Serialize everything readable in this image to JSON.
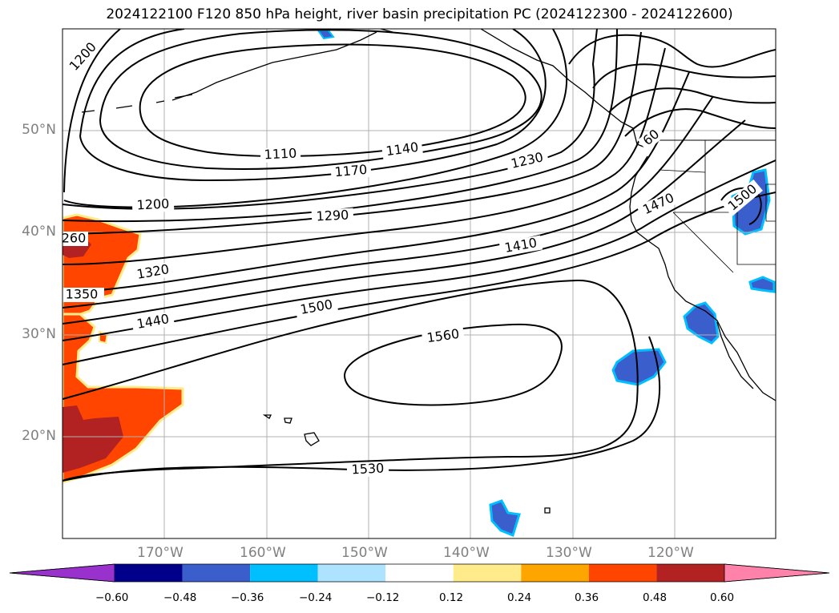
{
  "title": "2024122100 F120 850 hPa height, river basin precipitation PC (2024122300 - 2024122600)",
  "axes": {
    "lat_labels": [
      "20°N",
      "30°N",
      "40°N",
      "50°N"
    ],
    "lon_labels": [
      "170°W",
      "160°W",
      "150°W",
      "140°W",
      "130°W",
      "120°W"
    ]
  },
  "contour_labels": [
    "1200",
    "1110",
    "1140",
    "1170",
    "1230",
    "1200",
    "1290",
    "1410",
    "1470",
    "1500",
    "260",
    "1320",
    "1350",
    "1440",
    "1500",
    "1560",
    "1530",
    "60"
  ],
  "colorbar": {
    "ticks": [
      "−0.60",
      "−0.48",
      "−0.36",
      "−0.24",
      "−0.12",
      "0.12",
      "0.24",
      "0.36",
      "0.48",
      "0.60"
    ],
    "colors": [
      "#9932CC",
      "#00008B",
      "#3A5FCD",
      "#00BFFF",
      "#ADE3FF",
      "#FFFFFF",
      "#FFEB8A",
      "#FFA500",
      "#FF4500",
      "#B22222",
      "#FF82AB"
    ]
  },
  "colors": {
    "contour": "#000000",
    "grid": "#b0b0b0",
    "label": "#808080"
  }
}
